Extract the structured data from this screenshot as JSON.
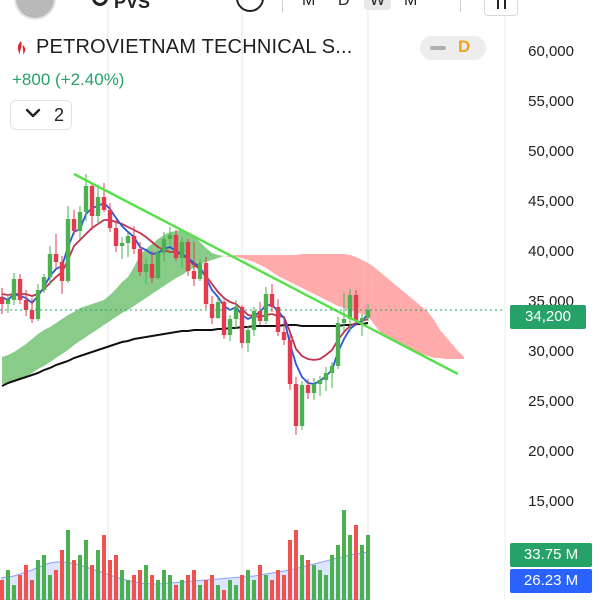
{
  "toolbar": {
    "symbol_text": "PVS",
    "interval_labels": [
      "M",
      "D",
      "W",
      "M"
    ]
  },
  "header": {
    "title": "PETROVIETNAM TECHNICAL S...",
    "change": "+800 (+2.40%)",
    "status_letter": "D",
    "indicators_count": "2",
    "logo_color": "#e0262d"
  },
  "colors": {
    "up": "#4caf50",
    "down": "#e53950",
    "kijun": "#c2334d",
    "tenkan": "#2b57d6",
    "cloud_bull": "#5cb85c",
    "cloud_bear": "#ff8a8a",
    "ma": "#111111",
    "trendline": "#56e04a",
    "price_line": "#26a269",
    "volume_up": "#4caf50",
    "volume_down": "#ef5350",
    "volume_ma": "#2b6bff",
    "volume_ma_label": "#2962ff"
  },
  "price_axis": {
    "ticks": [
      "60,000",
      "55,000",
      "50,000",
      "45,000",
      "40,000",
      "35,000",
      "30,000",
      "25,000",
      "20,000",
      "15,000"
    ],
    "current": "34,200"
  },
  "volume": {
    "last_label": "33.75 M",
    "ma_label": "26.23 M"
  },
  "chart_data": {
    "type": "candlestick",
    "ylim": [
      13000,
      62000
    ],
    "ticks": [
      60000,
      55000,
      50000,
      45000,
      40000,
      35000,
      30000,
      25000,
      20000,
      15000
    ],
    "current_price": 34200,
    "trendline": {
      "from": 47800,
      "to": 27800
    },
    "candles": [
      [
        35500,
        36400,
        33800,
        34800
      ],
      [
        34800,
        35800,
        33900,
        35200
      ],
      [
        35200,
        37900,
        34700,
        37300
      ],
      [
        37300,
        37800,
        34800,
        35200
      ],
      [
        35200,
        36200,
        33600,
        34200
      ],
      [
        34200,
        35400,
        32900,
        33300
      ],
      [
        33300,
        36800,
        33100,
        36200
      ],
      [
        36200,
        37800,
        35900,
        37500
      ],
      [
        37500,
        40600,
        36700,
        39800
      ],
      [
        39800,
        41800,
        38400,
        39000
      ],
      [
        39000,
        39600,
        35800,
        37100
      ],
      [
        37100,
        44600,
        36900,
        43300
      ],
      [
        43300,
        44200,
        41700,
        42100
      ],
      [
        42100,
        44600,
        41300,
        44000
      ],
      [
        44000,
        47800,
        43100,
        46600
      ],
      [
        46600,
        46900,
        42200,
        43600
      ],
      [
        43600,
        46500,
        42800,
        45500
      ],
      [
        45500,
        46900,
        44000,
        44200
      ],
      [
        44200,
        44900,
        42000,
        42400
      ],
      [
        42400,
        43200,
        40000,
        40600
      ],
      [
        40600,
        41500,
        39300,
        40900
      ],
      [
        40900,
        41900,
        39500,
        41600
      ],
      [
        41600,
        42600,
        39800,
        40300
      ],
      [
        40300,
        41000,
        37600,
        38000
      ],
      [
        38000,
        39400,
        36800,
        38800
      ],
      [
        38800,
        40100,
        36900,
        37400
      ],
      [
        37400,
        40200,
        37300,
        39900
      ],
      [
        39900,
        42000,
        39000,
        41300
      ],
      [
        41300,
        42500,
        40700,
        41700
      ],
      [
        41700,
        42200,
        39100,
        39400
      ],
      [
        39400,
        41500,
        38400,
        41000
      ],
      [
        41000,
        41300,
        37600,
        38100
      ],
      [
        38100,
        41000,
        36600,
        37300
      ],
      [
        37300,
        39300,
        37100,
        38900
      ],
      [
        38900,
        39500,
        34300,
        34800
      ],
      [
        34800,
        35600,
        32800,
        33400
      ],
      [
        33400,
        35400,
        33300,
        35000
      ],
      [
        35000,
        35200,
        31300,
        31700
      ],
      [
        31700,
        33700,
        31100,
        33300
      ],
      [
        33300,
        35200,
        32300,
        34500
      ],
      [
        34500,
        34700,
        30400,
        30900
      ],
      [
        30900,
        32600,
        30000,
        32200
      ],
      [
        32200,
        34500,
        31600,
        34100
      ],
      [
        34100,
        35000,
        32700,
        33100
      ],
      [
        33100,
        36500,
        32800,
        35800
      ],
      [
        35800,
        36800,
        34000,
        34500
      ],
      [
        34500,
        35300,
        31600,
        32000
      ],
      [
        32000,
        33500,
        30700,
        31200
      ],
      [
        31200,
        31800,
        26200,
        26800
      ],
      [
        26800,
        27500,
        21700,
        22600
      ],
      [
        22600,
        27100,
        22200,
        26700
      ],
      [
        26700,
        27300,
        25300,
        25900
      ],
      [
        25900,
        27400,
        25200,
        26800
      ],
      [
        26800,
        27600,
        25600,
        27200
      ],
      [
        27200,
        28500,
        26100,
        27900
      ],
      [
        27900,
        29000,
        26400,
        28600
      ],
      [
        28600,
        33500,
        28300,
        32900
      ],
      [
        32900,
        35900,
        32100,
        33300
      ],
      [
        33300,
        36300,
        32000,
        35700
      ],
      [
        35700,
        36200,
        32600,
        33100
      ],
      [
        33100,
        33800,
        31600,
        33400
      ],
      [
        33400,
        34800,
        33100,
        34200
      ]
    ],
    "tenkan": [
      35500,
      35200,
      35800,
      35600,
      35400,
      34900,
      35600,
      36500,
      37600,
      38300,
      38600,
      40500,
      42000,
      42300,
      43800,
      44400,
      44600,
      44900,
      44300,
      43400,
      42600,
      42000,
      41500,
      40500,
      40200,
      39800,
      39900,
      40300,
      40500,
      40100,
      39800,
      39400,
      38900,
      38500,
      37400,
      36200,
      35500,
      34600,
      34200,
      34500,
      33700,
      33300,
      33600,
      34000,
      34700,
      34700,
      34100,
      33400,
      30800,
      28800,
      27500,
      26900,
      26800,
      27100,
      27600,
      28200,
      30000,
      31300,
      32300,
      32800,
      33100,
      33800
    ],
    "kijun": [
      35800,
      35700,
      35800,
      35800,
      35800,
      35600,
      35800,
      36300,
      36900,
      37500,
      38000,
      39200,
      40600,
      41200,
      41800,
      42400,
      42800,
      43200,
      43200,
      43000,
      42800,
      42500,
      42200,
      41900,
      41500,
      41000,
      40500,
      40200,
      40000,
      40000,
      39700,
      39300,
      38700,
      38300,
      37600,
      36800,
      36000,
      35400,
      35000,
      34800,
      34300,
      33700,
      33600,
      33500,
      33700,
      33800,
      33600,
      33500,
      32000,
      30300,
      29600,
      29300,
      29200,
      29300,
      29700,
      30200,
      31200,
      32000,
      32600,
      32900,
      33100,
      33300
    ],
    "ma": [
      26600,
      26900,
      27100,
      27300,
      27500,
      27700,
      27900,
      28200,
      28400,
      28700,
      28900,
      29100,
      29400,
      29600,
      29800,
      30000,
      30200,
      30400,
      30600,
      30800,
      31000,
      31100,
      31300,
      31400,
      31500,
      31600,
      31700,
      31800,
      31900,
      32000,
      32100,
      32100,
      32200,
      32200,
      32200,
      32200,
      32300,
      32300,
      32400,
      32400,
      32500,
      32500,
      32600,
      32600,
      32600,
      32600,
      32600,
      32700,
      32700,
      32700,
      32600,
      32600,
      32600,
      32600,
      32600,
      32600,
      32600,
      32700,
      32700,
      32800,
      32800,
      32900
    ],
    "span_a": [
      29500,
      29700,
      30000,
      30400,
      30800,
      31300,
      31800,
      32200,
      32500,
      32900,
      33300,
      33700,
      34000,
      34400,
      34600,
      34800,
      35000,
      35200,
      35700,
      36300,
      37000,
      37500,
      38500,
      39700,
      40300,
      40800,
      41300,
      41700,
      42000,
      42100,
      42200,
      42000,
      41600,
      41000,
      40400,
      39900,
      39700,
      39600,
      39500,
      39500,
      39400,
      39200,
      39000,
      38700,
      38400,
      38000,
      37600,
      37300,
      37000,
      36700,
      36400,
      36100,
      35800,
      35500,
      35200,
      34900,
      34600,
      34400,
      34200,
      34000,
      33800,
      33600,
      32800,
      32000,
      31600,
      31200,
      30900,
      30600,
      30300,
      30000,
      29800,
      29600,
      29400,
      29400,
      29300,
      29300,
      29300,
      29300
    ],
    "span_b": [
      26800,
      26900,
      27100,
      27300,
      27600,
      27900,
      28300,
      28600,
      29000,
      29400,
      29800,
      30200,
      30700,
      31100,
      31500,
      31900,
      32300,
      32700,
      33100,
      33500,
      33900,
      34200,
      34600,
      35000,
      35400,
      35800,
      36200,
      36600,
      37000,
      37400,
      37700,
      38100,
      38400,
      38800,
      39000,
      39200,
      39400,
      39600,
      39600,
      39700,
      39700,
      39700,
      39700,
      39700,
      39700,
      39700,
      39700,
      39700,
      39700,
      39700,
      39800,
      39800,
      39800,
      39800,
      39800,
      39800,
      39800,
      39800,
      39700,
      39500,
      39200,
      38900,
      38500,
      38000,
      37500,
      37000,
      36500,
      36000,
      35500,
      35000,
      34500,
      34000,
      33200,
      32200,
      31500,
      30800,
      30100,
      29500
    ],
    "volume": [
      4,
      6,
      3,
      5,
      7,
      4,
      8,
      9,
      5,
      6,
      10,
      14,
      8,
      9,
      12,
      7,
      10,
      13,
      8,
      9,
      6,
      4,
      5,
      6,
      7,
      5,
      4,
      6,
      5,
      3,
      4,
      5,
      6,
      3,
      4,
      5,
      3,
      2,
      4,
      3,
      5,
      6,
      4,
      7,
      5,
      4,
      6,
      5,
      12,
      14,
      9,
      8,
      7,
      6,
      5,
      9,
      11,
      18,
      13,
      15,
      11,
      13
    ],
    "volume_max": 22,
    "volume_ma": [
      4.5,
      4.6,
      4.8,
      5.2,
      5.6,
      6.0,
      6.5,
      7.0,
      7.4,
      7.6,
      7.6,
      7.5,
      7.3,
      7.0,
      6.6,
      6.2,
      5.8,
      5.4,
      5.0,
      4.6,
      4.2,
      3.9,
      3.6,
      3.4,
      3.3,
      3.2,
      3.2,
      3.3,
      3.4,
      3.5,
      3.6,
      3.7,
      3.8,
      3.9,
      4.0,
      4.1,
      4.2,
      4.3,
      4.4,
      4.5,
      4.6,
      4.7,
      4.8,
      5.0,
      5.2,
      5.4,
      5.6,
      5.8,
      6.0,
      6.3,
      6.6,
      6.9,
      7.2,
      7.5,
      7.8,
      8.1,
      8.4,
      8.7,
      9.0,
      9.2,
      9.4,
      9.6
    ]
  }
}
